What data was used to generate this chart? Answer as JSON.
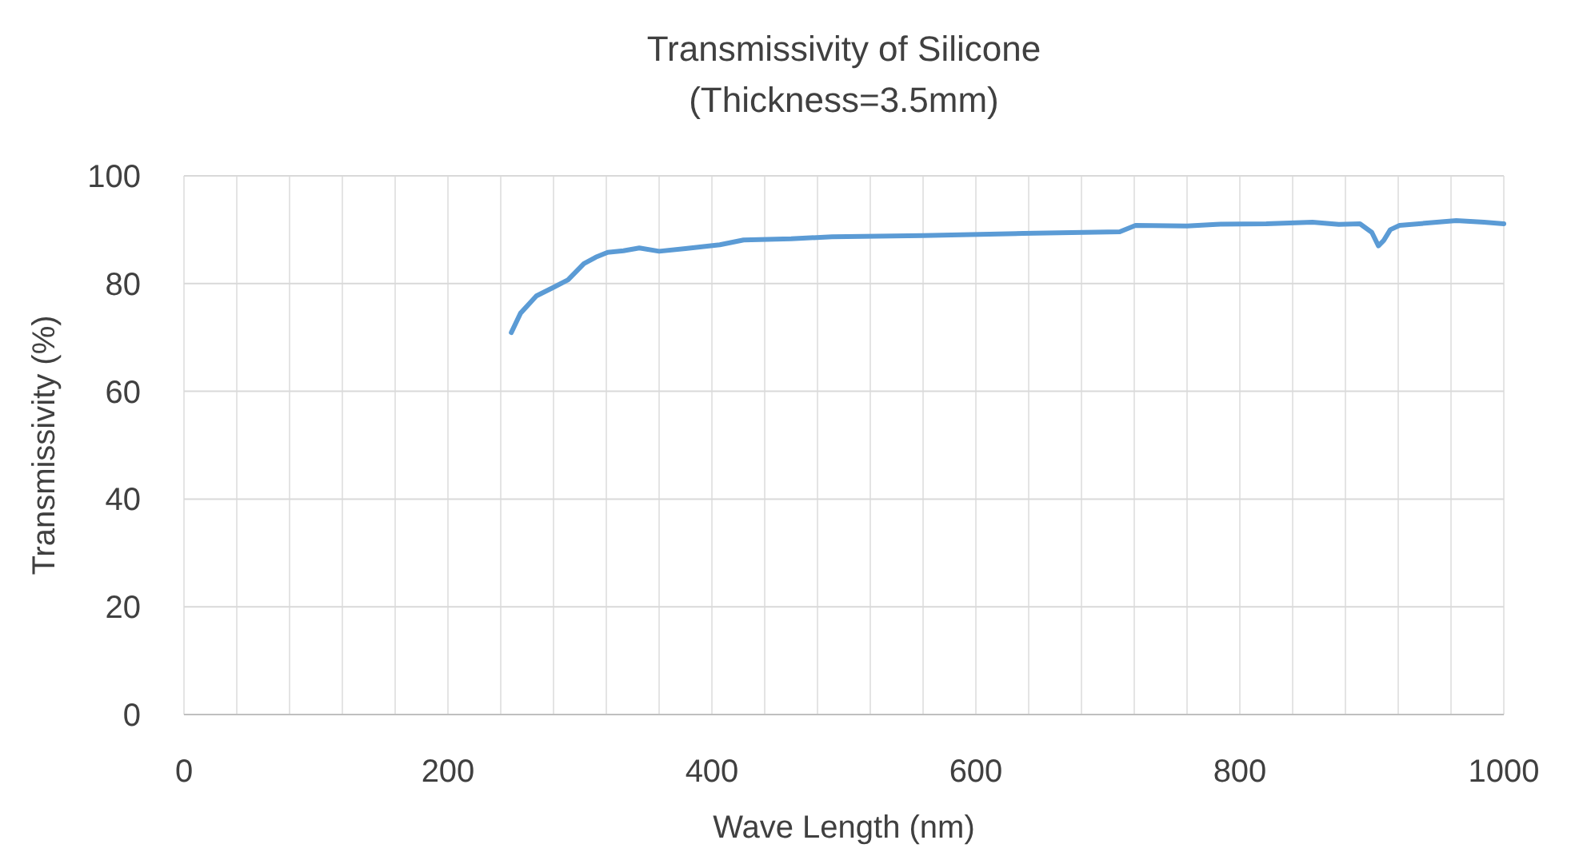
{
  "chart_data": {
    "type": "line",
    "title": "Transmissivity of Silicone",
    "subtitle": "(Thickness=3.5mm)",
    "xlabel": "Wave Length (nm)",
    "ylabel": "Transmissivity (%)",
    "xlim": [
      0,
      1000
    ],
    "ylim": [
      0,
      100
    ],
    "grid": true,
    "line_style": "solid",
    "marker": "none",
    "xticks": [
      0,
      {
        "value": 40,
        "label": null
      },
      {
        "value": 80,
        "label": null
      },
      {
        "value": 120,
        "label": null
      },
      {
        "value": 160,
        "label": null
      },
      200,
      {
        "value": 240,
        "label": null
      },
      {
        "value": 280,
        "label": null
      },
      {
        "value": 320,
        "label": null
      },
      {
        "value": 360,
        "label": null
      },
      400,
      {
        "value": 440,
        "label": null
      },
      {
        "value": 480,
        "label": null
      },
      {
        "value": 520,
        "label": null
      },
      {
        "value": 560,
        "label": null
      },
      600,
      {
        "value": 640,
        "label": null
      },
      {
        "value": 680,
        "label": null
      },
      {
        "value": 720,
        "label": null
      },
      {
        "value": 760,
        "label": null
      },
      800,
      {
        "value": 840,
        "label": null
      },
      {
        "value": 880,
        "label": null
      },
      {
        "value": 920,
        "label": null
      },
      {
        "value": 960,
        "label": null
      },
      1000
    ],
    "yticks": [
      0,
      20,
      40,
      60,
      80,
      100
    ],
    "x": [
      248,
      255,
      267,
      280,
      291,
      303,
      312,
      321,
      333,
      345,
      360,
      380,
      406,
      424,
      460,
      491,
      560,
      636,
      709,
      721,
      760,
      782,
      820,
      855,
      875,
      891,
      900,
      905,
      909,
      914,
      921,
      940,
      964,
      985,
      1000
    ],
    "series": [
      {
        "color": "#5b9bd5",
        "values": [
          70.9,
          74.5,
          77.7,
          79.3,
          80.7,
          83.7,
          84.9,
          85.8,
          86.1,
          86.6,
          86.0,
          86.5,
          87.2,
          88.1,
          88.3,
          88.7,
          88.9,
          89.3,
          89.6,
          90.8,
          90.7,
          91.0,
          91.1,
          91.4,
          91.0,
          91.1,
          89.5,
          87.0,
          88.0,
          90.0,
          90.8,
          91.2,
          91.7,
          91.4,
          91.1
        ]
      }
    ]
  }
}
